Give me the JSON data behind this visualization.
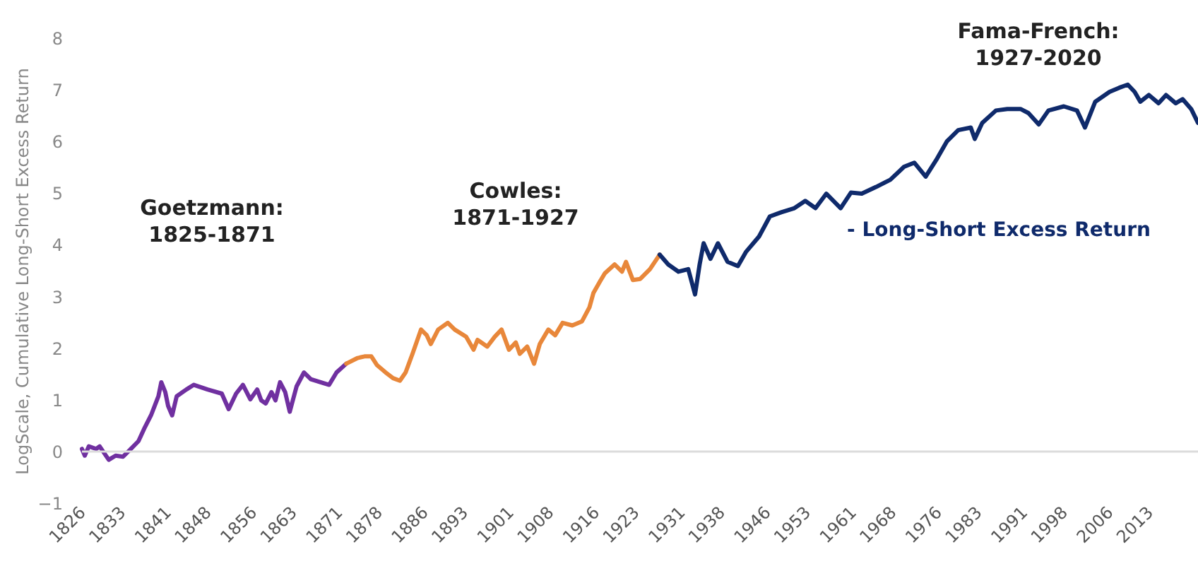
{
  "chart_data": {
    "type": "line",
    "ylabel": "LogScale, Cumulative Long-Short Excess Return",
    "annotations": [
      "Goetzmann:\n1825-1871",
      "Cowles:\n1871-1927",
      "Fama-French:\n1927-2020"
    ],
    "xlim": [
      1826,
      2021.5
    ],
    "ylim": [
      -1,
      8
    ],
    "xticks": [
      1826,
      1833,
      1841,
      1848,
      1856,
      1863,
      1871,
      1878,
      1886,
      1893,
      1901,
      1908,
      1916,
      1923,
      1931,
      1938,
      1946,
      1953,
      1961,
      1968,
      1976,
      1983,
      1991,
      1998,
      2006,
      2013
    ],
    "yticks": [
      -1,
      0,
      1,
      2,
      3,
      4,
      5,
      6,
      7,
      8
    ],
    "ref_lines": [
      {
        "axis": "y",
        "value": 0,
        "color": "#dcdcdc"
      }
    ],
    "series": [
      {
        "color": "#7030a0",
        "x": [
          1826.0,
          1826.5,
          1827.2,
          1828.5,
          1829.1,
          1830.7,
          1831.9,
          1833.2,
          1834.4,
          1835.9,
          1836.9,
          1838.1,
          1839.4,
          1839.9,
          1840.6,
          1841.1,
          1841.8,
          1842.6,
          1844.3,
          1845.6,
          1848.0,
          1850.5,
          1851.7,
          1853.0,
          1854.2,
          1855.5,
          1856.7,
          1857.4,
          1858.2,
          1859.2,
          1859.9,
          1860.7,
          1861.6,
          1862.4,
          1863.6,
          1864.9,
          1866.1,
          1867.8,
          1869.3,
          1870.6,
          1872.3
        ],
        "values": [
          0.05,
          -0.08,
          0.1,
          0.05,
          0.1,
          -0.16,
          -0.08,
          -0.1,
          0.03,
          0.2,
          0.44,
          0.7,
          1.07,
          1.34,
          1.15,
          0.88,
          0.7,
          1.07,
          1.2,
          1.29,
          1.2,
          1.12,
          0.82,
          1.12,
          1.29,
          1.01,
          1.2,
          0.99,
          0.93,
          1.15,
          0.99,
          1.34,
          1.15,
          0.77,
          1.26,
          1.53,
          1.4,
          1.34,
          1.29,
          1.53,
          1.7
        ]
      },
      {
        "color": "#e8873a",
        "x": [
          1872.3,
          1874.3,
          1875.5,
          1876.7,
          1877.7,
          1879.2,
          1880.5,
          1881.7,
          1882.7,
          1883.9,
          1885.4,
          1886.4,
          1887.1,
          1888.4,
          1890.1,
          1891.3,
          1893.3,
          1894.6,
          1895.3,
          1897.0,
          1898.3,
          1899.5,
          1900.8,
          1902.0,
          1902.7,
          1904.0,
          1905.2,
          1906.2,
          1907.7,
          1908.9,
          1910.2,
          1911.9,
          1913.6,
          1914.9,
          1915.6,
          1916.8,
          1917.6,
          1919.3,
          1920.6,
          1921.3,
          1922.5,
          1923.8,
          1925.5,
          1927.2
        ],
        "values": [
          1.7,
          1.81,
          1.84,
          1.84,
          1.67,
          1.53,
          1.42,
          1.37,
          1.53,
          1.89,
          2.36,
          2.25,
          2.08,
          2.36,
          2.49,
          2.36,
          2.22,
          1.97,
          2.16,
          2.03,
          2.22,
          2.36,
          1.97,
          2.11,
          1.89,
          2.03,
          1.7,
          2.08,
          2.36,
          2.25,
          2.49,
          2.44,
          2.52,
          2.79,
          3.07,
          3.3,
          3.45,
          3.62,
          3.48,
          3.67,
          3.32,
          3.34,
          3.53,
          3.81
        ]
      },
      {
        "name": "- Long-Short Excess Return",
        "color": "#0f2a6b",
        "x": [
          1927.2,
          1928.7,
          1930.5,
          1932.2,
          1933.4,
          1934.2,
          1934.9,
          1936.1,
          1937.4,
          1939.1,
          1940.9,
          1942.3,
          1944.6,
          1946.5,
          1948.5,
          1950.8,
          1952.7,
          1954.5,
          1956.4,
          1958.9,
          1960.7,
          1962.6,
          1965.1,
          1967.6,
          1970.0,
          1971.8,
          1973.8,
          1975.8,
          1977.5,
          1979.5,
          1981.7,
          1982.4,
          1983.7,
          1986.1,
          1988.1,
          1990.4,
          1991.8,
          1993.6,
          1995.3,
          1998.0,
          2000.3,
          2001.7,
          2003.5,
          2006.0,
          2007.7,
          2009.2,
          2010.4,
          2011.4,
          2012.9,
          2014.6,
          2015.9,
          2017.6,
          2018.8,
          2020.3,
          2021.5
        ],
        "values": [
          3.81,
          3.62,
          3.48,
          3.53,
          3.04,
          3.62,
          4.03,
          3.73,
          4.03,
          3.67,
          3.59,
          3.86,
          4.16,
          4.55,
          4.63,
          4.71,
          4.85,
          4.71,
          4.99,
          4.71,
          5.01,
          4.99,
          5.12,
          5.26,
          5.51,
          5.59,
          5.32,
          5.67,
          6.0,
          6.22,
          6.27,
          6.05,
          6.36,
          6.6,
          6.63,
          6.63,
          6.55,
          6.33,
          6.6,
          6.68,
          6.6,
          6.27,
          6.77,
          6.96,
          7.04,
          7.1,
          6.96,
          6.77,
          6.9,
          6.74,
          6.9,
          6.74,
          6.82,
          6.63,
          6.36
        ]
      }
    ]
  }
}
